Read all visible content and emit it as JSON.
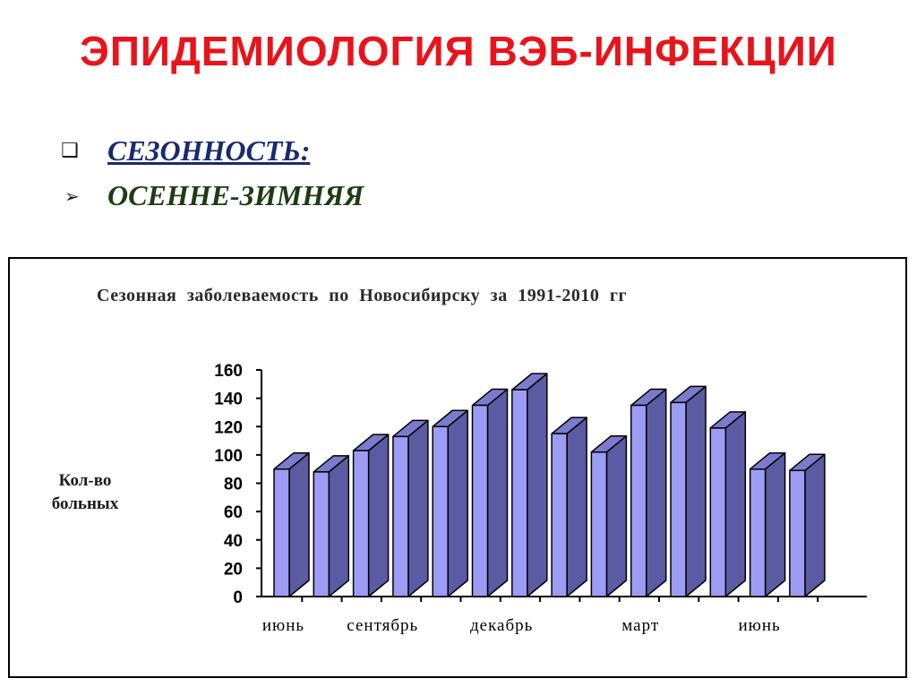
{
  "slide": {
    "title": "ЭПИДЕМИОЛОГИЯ ВЭБ-ИНФЕКЦИИ",
    "bullets": [
      {
        "marker_icon": "checkbox-square-icon",
        "text": "СЕЗОННОСТЬ:"
      },
      {
        "marker_icon": "arrowhead-icon",
        "text": "ОСЕННЕ-ЗИМНЯЯ"
      }
    ]
  },
  "chart_data": {
    "type": "bar",
    "title": "Сезонная заболеваемость по Новосибирску за 1991-2010 гг",
    "ylabel_lines": [
      "Кол-во",
      "больных"
    ],
    "xlabel": "",
    "ylim": [
      0,
      160
    ],
    "yticks": [
      0,
      20,
      40,
      60,
      80,
      100,
      120,
      140,
      160
    ],
    "x_labels": [
      {
        "bar_index": 0,
        "text": "июнь"
      },
      {
        "bar_index": 2.5,
        "text": "сентябрь"
      },
      {
        "bar_index": 5.5,
        "text": "декабрь"
      },
      {
        "bar_index": 9,
        "text": "март"
      },
      {
        "bar_index": 12,
        "text": "июнь"
      }
    ],
    "values": [
      90,
      88,
      103,
      113,
      120,
      135,
      146,
      115,
      102,
      135,
      137,
      119,
      90,
      89
    ],
    "style": "3d",
    "colors": {
      "front": "#9c9cf5",
      "side": "#5b5ba3",
      "top": "#7b7bce",
      "edge": "#000000"
    },
    "grid": false
  }
}
